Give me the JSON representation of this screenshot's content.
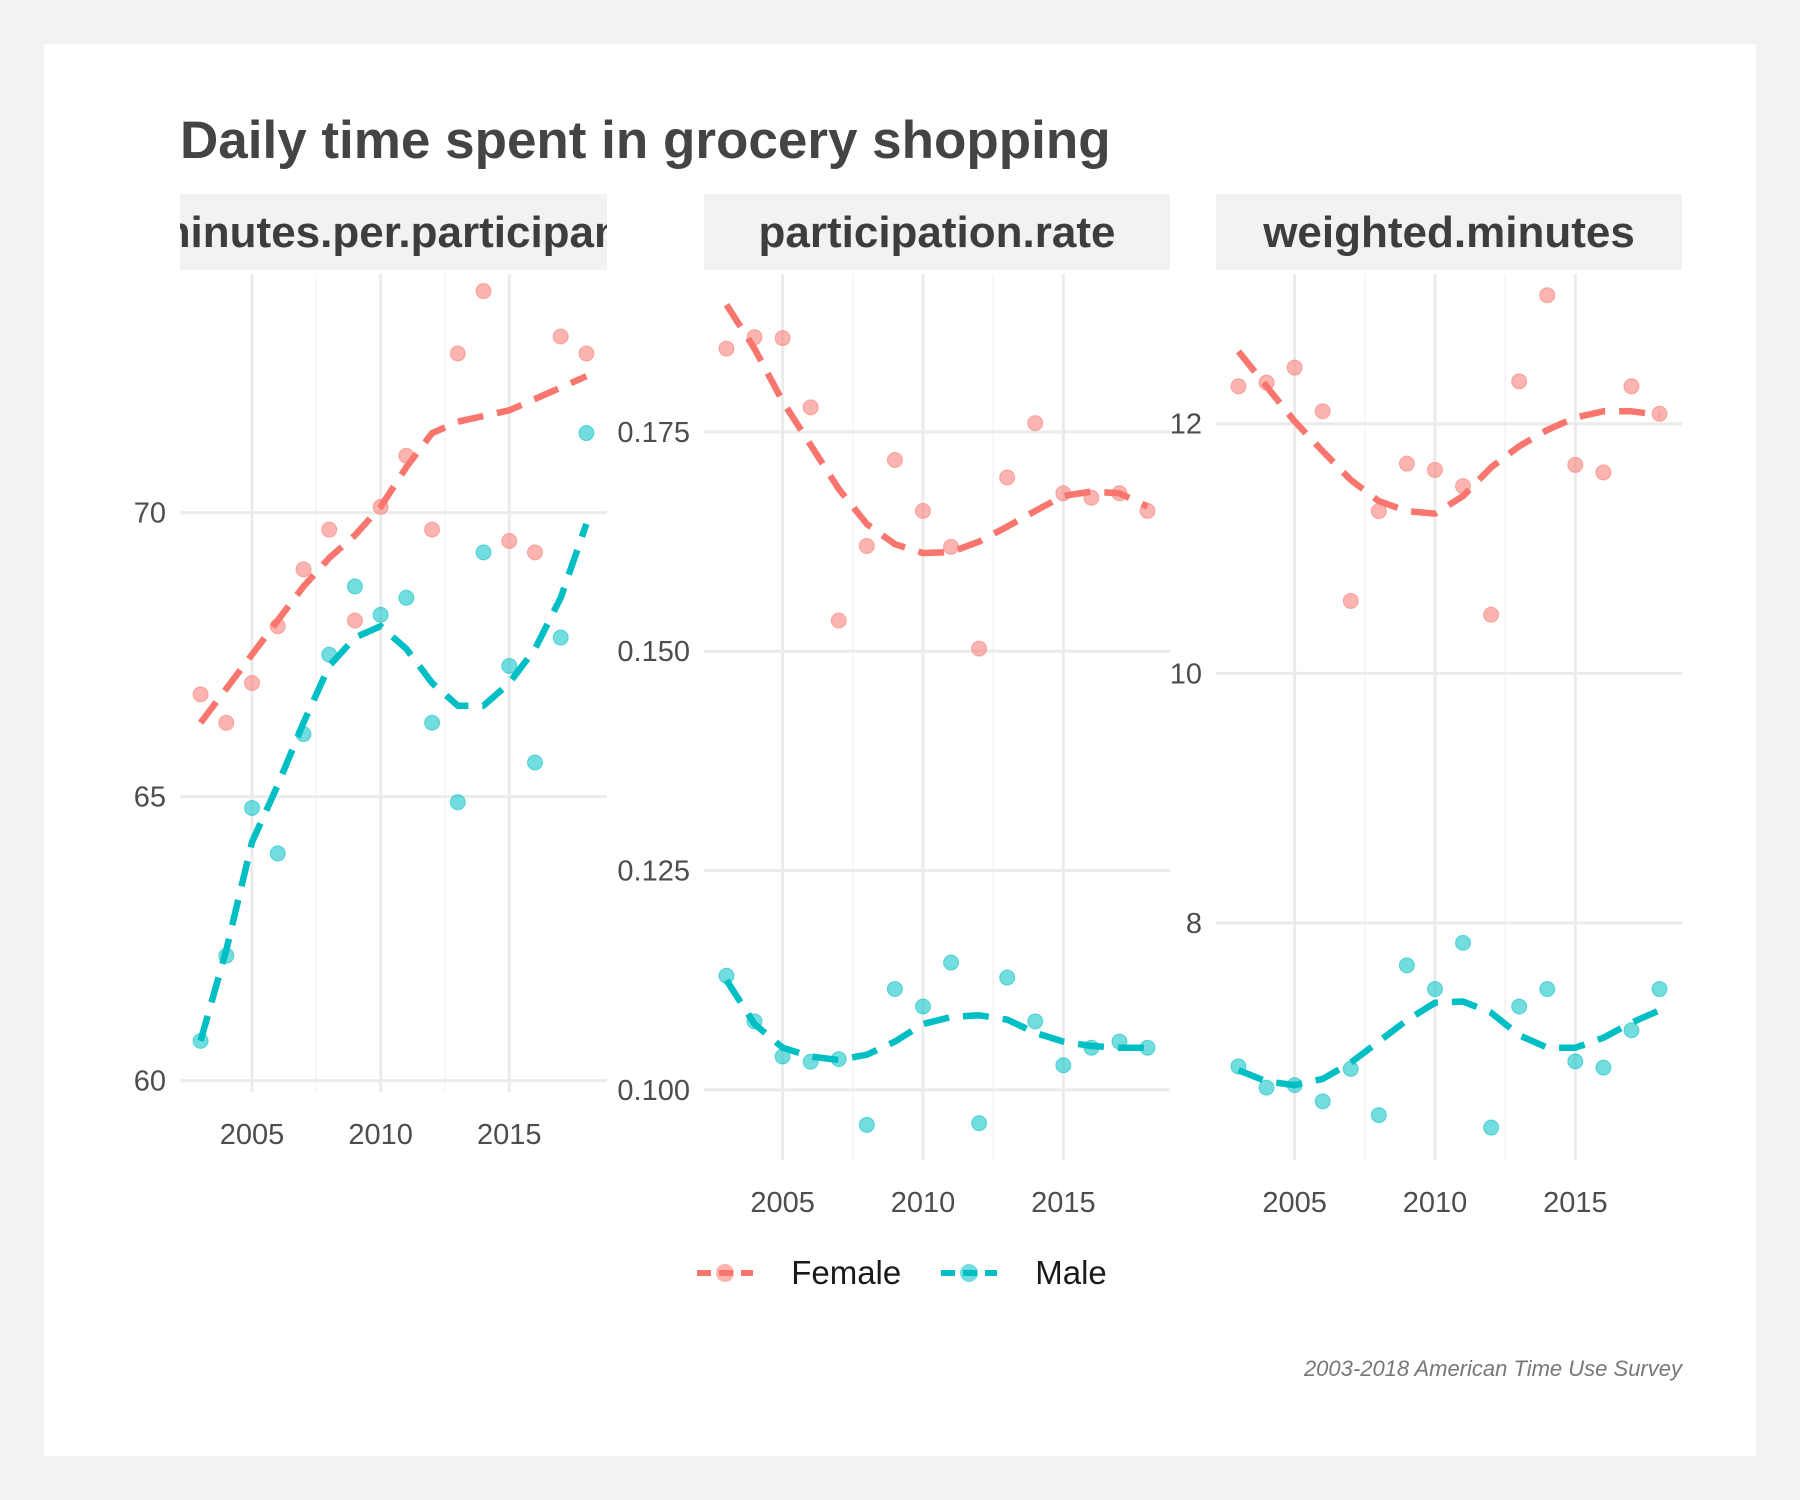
{
  "title": "Daily time spent in grocery shopping",
  "caption": "2003-2018 American Time Use Survey",
  "legend": [
    {
      "label": "Female",
      "color": "#F8766D"
    },
    {
      "label": "Male",
      "color": "#00BFC4"
    }
  ],
  "colors": {
    "female": "#F8766D",
    "male": "#00BFC4",
    "grid": "#ebebeb",
    "strip": "#f2f2f2"
  },
  "chart_data": [
    {
      "type": "scatter",
      "panel": "minutes.per.participant",
      "panel_label": "minutes.per.participant",
      "x_ticks": [
        2005,
        2010,
        2015
      ],
      "y_ticks": [
        60,
        65,
        70
      ],
      "xlim": [
        2002.2,
        2018.8
      ],
      "ylim": [
        59.8,
        74.2
      ],
      "series": [
        {
          "name": "Female",
          "x": [
            2003,
            2004,
            2005,
            2006,
            2007,
            2008,
            2009,
            2010,
            2011,
            2012,
            2013,
            2014,
            2015,
            2016,
            2017,
            2018
          ],
          "y": [
            66.8,
            66.3,
            67.0,
            68.0,
            69.0,
            69.7,
            68.1,
            70.1,
            71.0,
            69.7,
            72.8,
            73.9,
            69.5,
            69.3,
            73.1,
            72.8
          ],
          "trend": [
            66.3,
            66.9,
            67.5,
            68.1,
            68.7,
            69.2,
            69.6,
            70.1,
            70.8,
            71.4,
            71.6,
            71.7,
            71.8,
            72.0,
            72.2,
            72.4
          ]
        },
        {
          "name": "Male",
          "x": [
            2003,
            2004,
            2005,
            2006,
            2007,
            2008,
            2009,
            2010,
            2011,
            2012,
            2013,
            2014,
            2015,
            2016,
            2017,
            2018
          ],
          "y": [
            60.7,
            62.2,
            64.8,
            64.0,
            66.1,
            67.5,
            68.7,
            68.2,
            68.5,
            66.3,
            64.9,
            69.3,
            67.3,
            65.6,
            67.8,
            71.4
          ],
          "trend": [
            60.7,
            62.3,
            64.2,
            65.2,
            66.3,
            67.3,
            67.8,
            68.0,
            67.6,
            67.0,
            66.6,
            66.6,
            67.0,
            67.6,
            68.5,
            69.8
          ]
        }
      ]
    },
    {
      "type": "scatter",
      "panel": "participation.rate",
      "panel_label": "participation.rate",
      "x_ticks": [
        2005,
        2010,
        2015
      ],
      "y_ticks": [
        0.1,
        0.125,
        0.15,
        0.175
      ],
      "y_tick_labels": [
        "0.100",
        "0.125",
        "0.150",
        "0.175"
      ],
      "xlim": [
        2002.2,
        2018.8
      ],
      "ylim": [
        0.092,
        0.193
      ],
      "series": [
        {
          "name": "Female",
          "x": [
            2003,
            2004,
            2005,
            2006,
            2007,
            2008,
            2009,
            2010,
            2011,
            2012,
            2013,
            2014,
            2015,
            2016,
            2017,
            2018
          ],
          "y": [
            0.1845,
            0.1858,
            0.1857,
            0.1778,
            0.1535,
            0.162,
            0.1718,
            0.166,
            0.1619,
            0.1503,
            0.1698,
            0.176,
            0.168,
            0.1675,
            0.168,
            0.166
          ],
          "trend": [
            0.1895,
            0.1845,
            0.1785,
            0.1735,
            0.1685,
            0.1645,
            0.1622,
            0.1612,
            0.1613,
            0.1625,
            0.1642,
            0.166,
            0.1677,
            0.1682,
            0.168,
            0.1665
          ]
        },
        {
          "name": "Male",
          "x": [
            2003,
            2004,
            2005,
            2006,
            2007,
            2008,
            2009,
            2010,
            2011,
            2012,
            2013,
            2014,
            2015,
            2016,
            2017,
            2018
          ],
          "y": [
            0.113,
            0.1078,
            0.1038,
            0.1032,
            0.1035,
            0.096,
            0.1115,
            0.1095,
            0.1145,
            0.0962,
            0.1128,
            0.1078,
            0.1028,
            0.1048,
            0.1055,
            0.1048
          ],
          "trend": [
            0.1125,
            0.1075,
            0.1048,
            0.1038,
            0.1034,
            0.104,
            0.1055,
            0.1075,
            0.1083,
            0.1085,
            0.108,
            0.1065,
            0.1055,
            0.105,
            0.1048,
            0.1048
          ]
        }
      ]
    },
    {
      "type": "scatter",
      "panel": "weighted.minutes",
      "panel_label": "weighted.minutes",
      "x_ticks": [
        2005,
        2010,
        2015
      ],
      "y_ticks": [
        8,
        10,
        12
      ],
      "xlim": [
        2002.2,
        2018.8
      ],
      "ylim": [
        6.1,
        13.2
      ],
      "series": [
        {
          "name": "Female",
          "x": [
            2003,
            2004,
            2005,
            2006,
            2007,
            2008,
            2009,
            2010,
            2011,
            2012,
            2013,
            2014,
            2015,
            2016,
            2017,
            2018
          ],
          "y": [
            12.3,
            12.33,
            12.45,
            12.1,
            10.58,
            11.3,
            11.68,
            11.63,
            11.5,
            10.47,
            12.34,
            13.03,
            11.67,
            11.61,
            12.3,
            12.08
          ],
          "trend": [
            12.58,
            12.3,
            12.02,
            11.78,
            11.55,
            11.38,
            11.3,
            11.28,
            11.42,
            11.65,
            11.82,
            11.95,
            12.05,
            12.1,
            12.1,
            12.07
          ]
        },
        {
          "name": "Male",
          "x": [
            2003,
            2004,
            2005,
            2006,
            2007,
            2008,
            2009,
            2010,
            2011,
            2012,
            2013,
            2014,
            2015,
            2016,
            2017,
            2018
          ],
          "y": [
            6.85,
            6.68,
            6.7,
            6.57,
            6.83,
            6.46,
            7.66,
            7.47,
            7.84,
            6.36,
            7.33,
            7.47,
            6.89,
            6.84,
            7.14,
            7.47
          ],
          "trend": [
            6.82,
            6.73,
            6.7,
            6.75,
            6.88,
            7.05,
            7.22,
            7.36,
            7.37,
            7.28,
            7.1,
            7.0,
            7.0,
            7.08,
            7.2,
            7.3
          ]
        }
      ]
    }
  ]
}
